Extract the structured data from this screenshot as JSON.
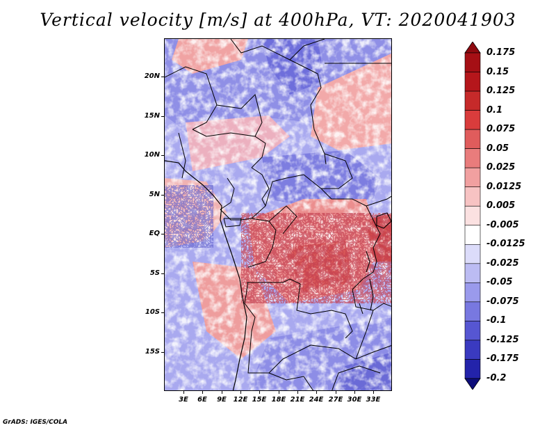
{
  "title": "Vertical velocity [m/s] at 400hPa, VT: 2020041903",
  "credit": "GrADS: IGES/COLA",
  "map": {
    "lat_range": [
      -20,
      25
    ],
    "lon_range": [
      0,
      36
    ],
    "lat_labels": [
      "20N",
      "15N",
      "10N",
      "5N",
      "EQ",
      "5S",
      "10S",
      "15S"
    ],
    "lon_labels": [
      "3E",
      "6E",
      "9E",
      "12E",
      "15E",
      "18E",
      "21E",
      "24E",
      "27E",
      "30E",
      "33E"
    ],
    "field": "vertical velocity",
    "units": "m/s",
    "level": "400hPa",
    "valid_time": "2020041903"
  },
  "colorbar": {
    "labels": [
      "0.175",
      "0.15",
      "0.125",
      "0.1",
      "0.075",
      "0.05",
      "0.025",
      "0.0125",
      "0.005",
      "-0.005",
      "-0.0125",
      "-0.025",
      "-0.05",
      "-0.075",
      "-0.1",
      "-0.125",
      "-0.175",
      "-0.2"
    ],
    "colors": [
      "#a50f15",
      "#b5161b",
      "#c62a2a",
      "#d93c3c",
      "#e05c5c",
      "#e97c7c",
      "#f1a0a0",
      "#f7c3c3",
      "#fbe1e1",
      "#ffffff",
      "#dcdcfa",
      "#bcbcf3",
      "#9a9aec",
      "#7878e0",
      "#5656d2",
      "#3a3ac0",
      "#2323aa",
      "#141490"
    ],
    "top_arrow_color": "#8e0a10",
    "bottom_arrow_color": "#0e0e7a"
  }
}
